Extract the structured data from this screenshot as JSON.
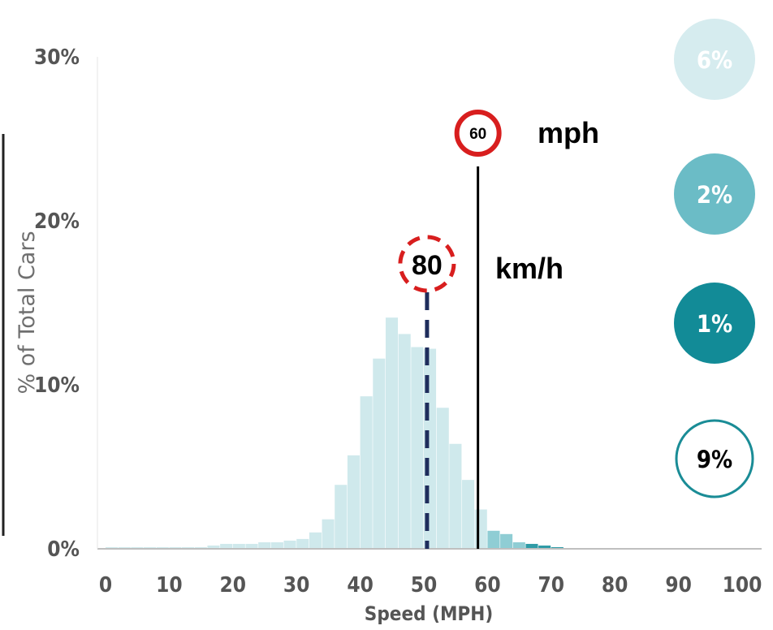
{
  "chart_data": {
    "type": "bar",
    "xlabel": "Speed (MPH)",
    "ylabel": "% of Total Cars",
    "xlim": [
      0,
      100
    ],
    "ylim": [
      0,
      30
    ],
    "x_ticks": [
      "0",
      "10",
      "20",
      "30",
      "40",
      "50",
      "60",
      "70",
      "80",
      "90",
      "100"
    ],
    "y_ticks": [
      "0%",
      "10%",
      "20%",
      "30%"
    ],
    "bin_width": 2,
    "bins": [
      {
        "x": 0,
        "value": 0.1
      },
      {
        "x": 2,
        "value": 0.1
      },
      {
        "x": 4,
        "value": 0.1
      },
      {
        "x": 6,
        "value": 0.1
      },
      {
        "x": 8,
        "value": 0.1
      },
      {
        "x": 10,
        "value": 0.1
      },
      {
        "x": 12,
        "value": 0.1
      },
      {
        "x": 14,
        "value": 0.1
      },
      {
        "x": 16,
        "value": 0.2
      },
      {
        "x": 18,
        "value": 0.3
      },
      {
        "x": 20,
        "value": 0.3
      },
      {
        "x": 22,
        "value": 0.3
      },
      {
        "x": 24,
        "value": 0.4
      },
      {
        "x": 26,
        "value": 0.4
      },
      {
        "x": 28,
        "value": 0.5
      },
      {
        "x": 30,
        "value": 0.6
      },
      {
        "x": 32,
        "value": 1.0
      },
      {
        "x": 34,
        "value": 1.8
      },
      {
        "x": 36,
        "value": 3.9
      },
      {
        "x": 38,
        "value": 5.7
      },
      {
        "x": 40,
        "value": 9.3
      },
      {
        "x": 42,
        "value": 11.6
      },
      {
        "x": 44,
        "value": 14.1
      },
      {
        "x": 46,
        "value": 13.1
      },
      {
        "x": 48,
        "value": 12.3
      },
      {
        "x": 50,
        "value": 12.2
      },
      {
        "x": 52,
        "value": 8.6
      },
      {
        "x": 54,
        "value": 6.4
      },
      {
        "x": 56,
        "value": 4.2
      },
      {
        "x": 58,
        "value": 2.4
      },
      {
        "x": 60,
        "value": 1.1
      },
      {
        "x": 62,
        "value": 0.9
      },
      {
        "x": 64,
        "value": 0.4
      },
      {
        "x": 66,
        "value": 0.3
      },
      {
        "x": 68,
        "value": 0.2
      },
      {
        "x": 70,
        "value": 0.1
      }
    ],
    "reference_lines": [
      {
        "name": "mph limit",
        "x": 58.5,
        "style": "solid",
        "color": "#000000",
        "sign": "60",
        "sign_style": "solid",
        "unit_label": "mph"
      },
      {
        "name": "km/h limit",
        "x": 50.5,
        "style": "dashed",
        "color": "#1f2d5c",
        "sign": "80",
        "sign_style": "dashed",
        "unit_label": "km/h"
      }
    ],
    "legend": {
      "placement": "right",
      "entries": [
        {
          "label": "6%",
          "color": "#d6ecef",
          "style": "filled"
        },
        {
          "label": "2%",
          "color": "#6bbcc6",
          "style": "filled"
        },
        {
          "label": "1%",
          "color": "#128b97",
          "style": "filled"
        },
        {
          "label": "9%",
          "color": "#1a8c96",
          "style": "outline"
        }
      ]
    },
    "colors": {
      "bar_light": "#cfe9ec",
      "bar_mid": "#8fcdd4",
      "bar_dark": "#2f9ba6",
      "sign_red": "#d81e1e",
      "axis_text": "#555555"
    }
  }
}
